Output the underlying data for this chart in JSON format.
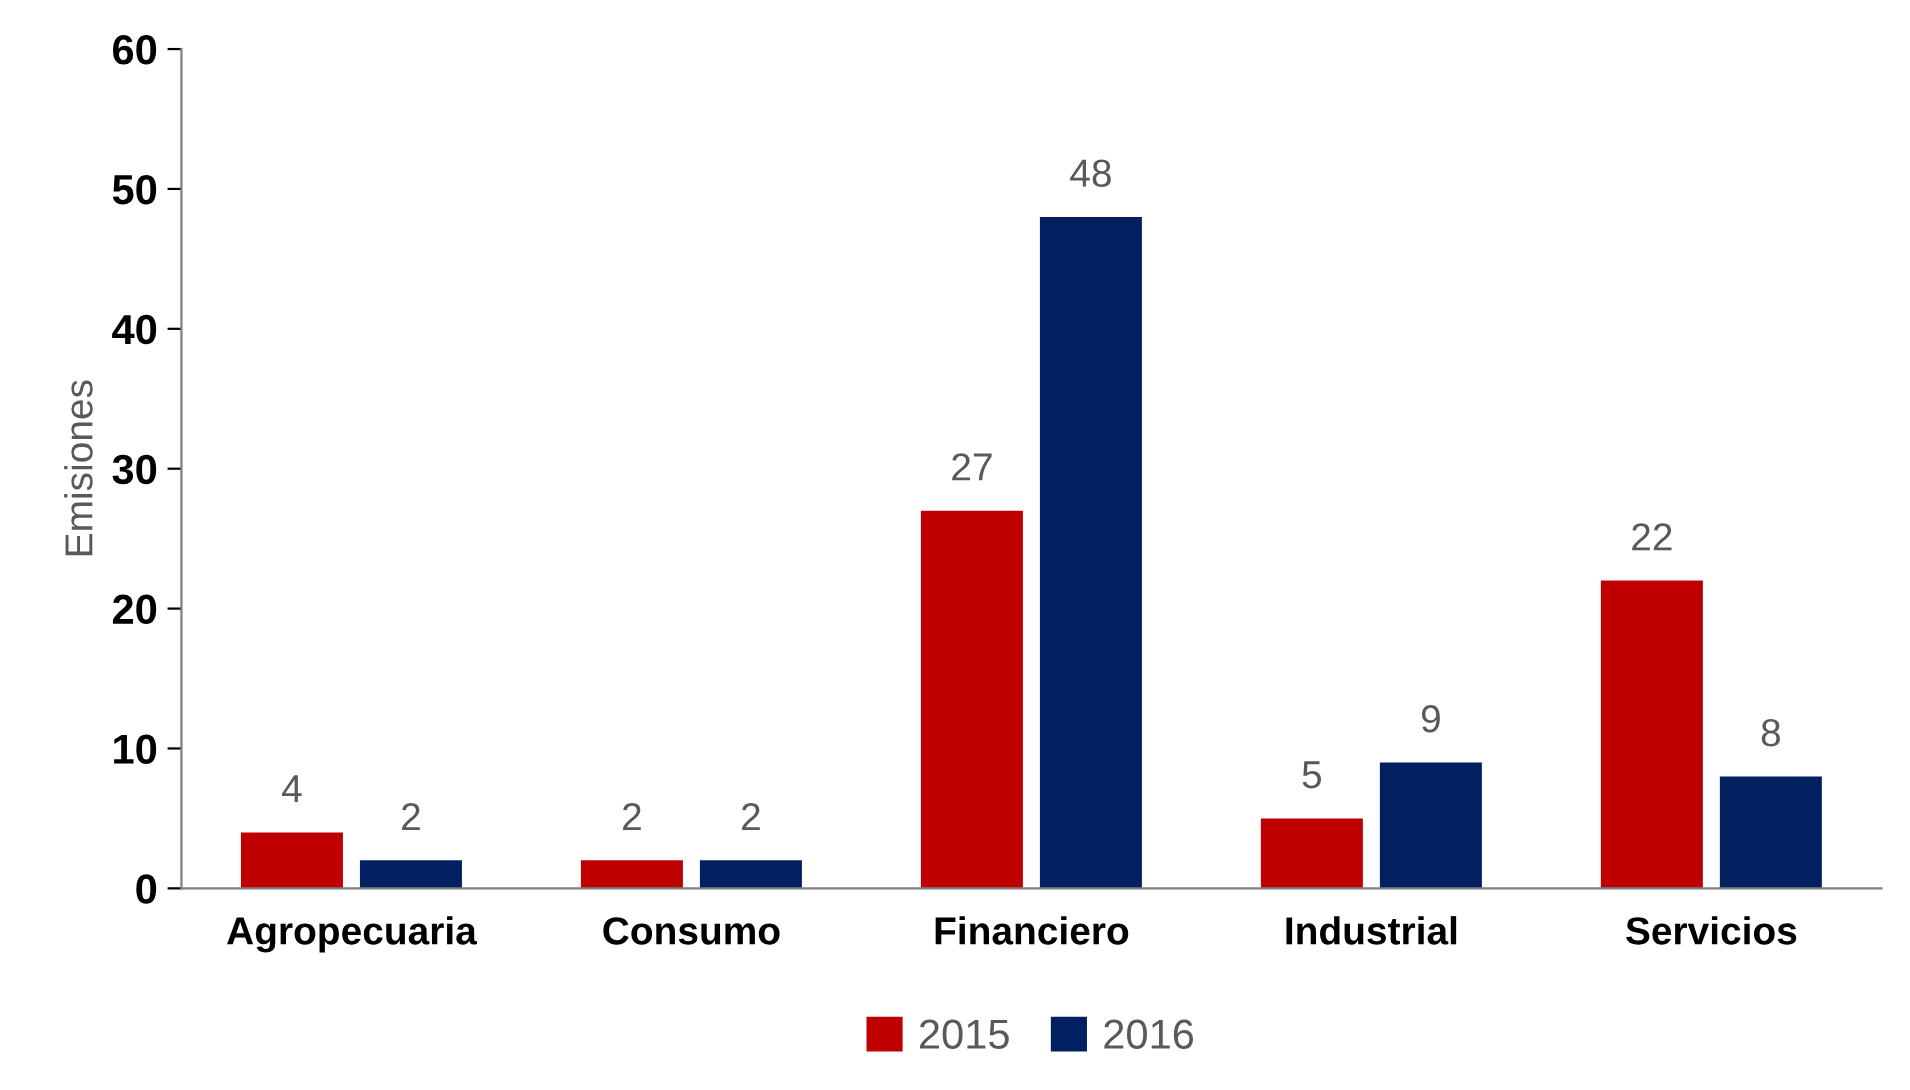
{
  "chart_data": {
    "type": "bar",
    "ylabel": "Emisiones",
    "categories": [
      "Agropecuaria",
      "Consumo",
      "Financiero",
      "Industrial",
      "Servicios"
    ],
    "series": [
      {
        "name": "2015",
        "color": "#c00000",
        "values": [
          4,
          2,
          27,
          5,
          22
        ]
      },
      {
        "name": "2016",
        "color": "#002060",
        "values": [
          2,
          2,
          48,
          9,
          8
        ]
      }
    ],
    "ylim": [
      0,
      60
    ],
    "yticks": [
      0,
      10,
      20,
      30,
      40,
      50,
      60
    ],
    "grid": false,
    "legend": "bottom",
    "data_labels": true
  }
}
